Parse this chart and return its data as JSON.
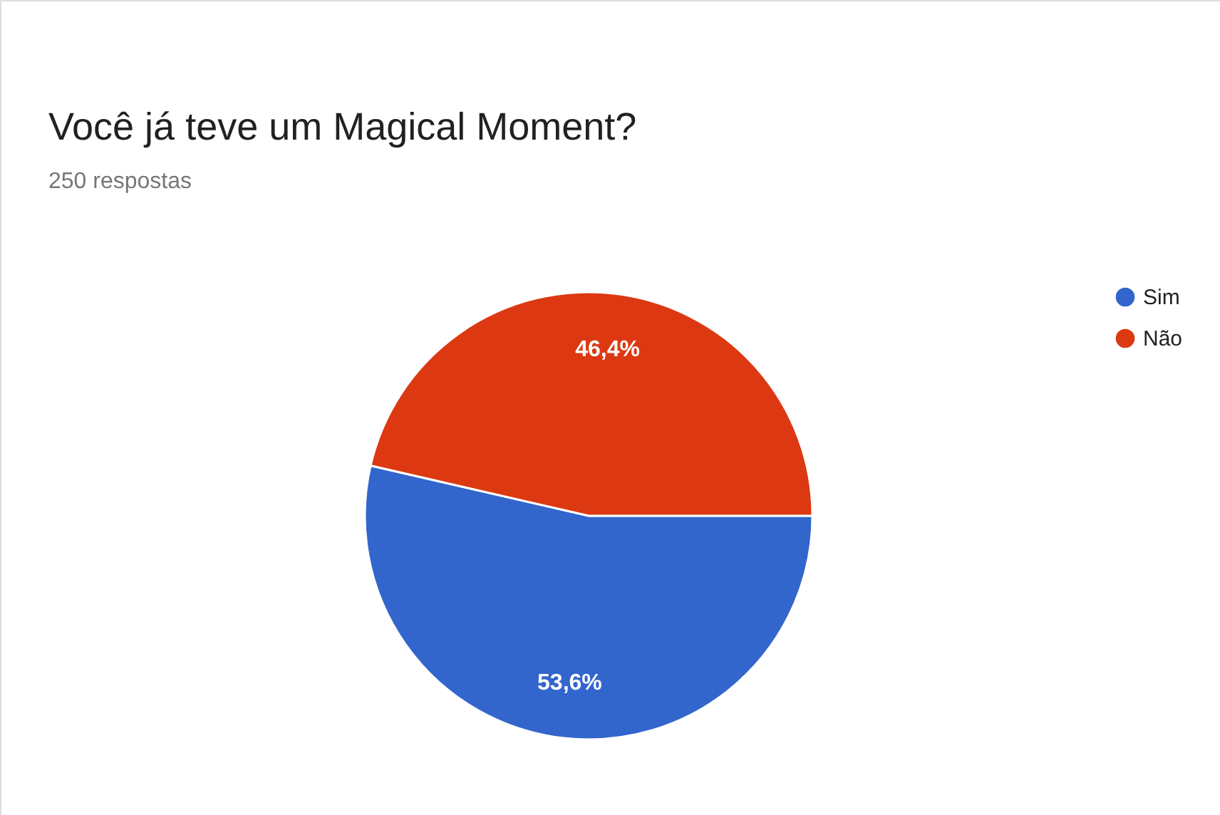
{
  "chart_data": {
    "type": "pie",
    "title": "Você já teve um Magical Moment?",
    "subtitle": "250 respostas",
    "categories": [
      "Sim",
      "Não"
    ],
    "values": [
      53.6,
      46.4
    ],
    "colors": [
      "#3366cc",
      "#dc3912"
    ],
    "value_labels": [
      "53,6%",
      "46,4%"
    ],
    "legend": "top right"
  }
}
